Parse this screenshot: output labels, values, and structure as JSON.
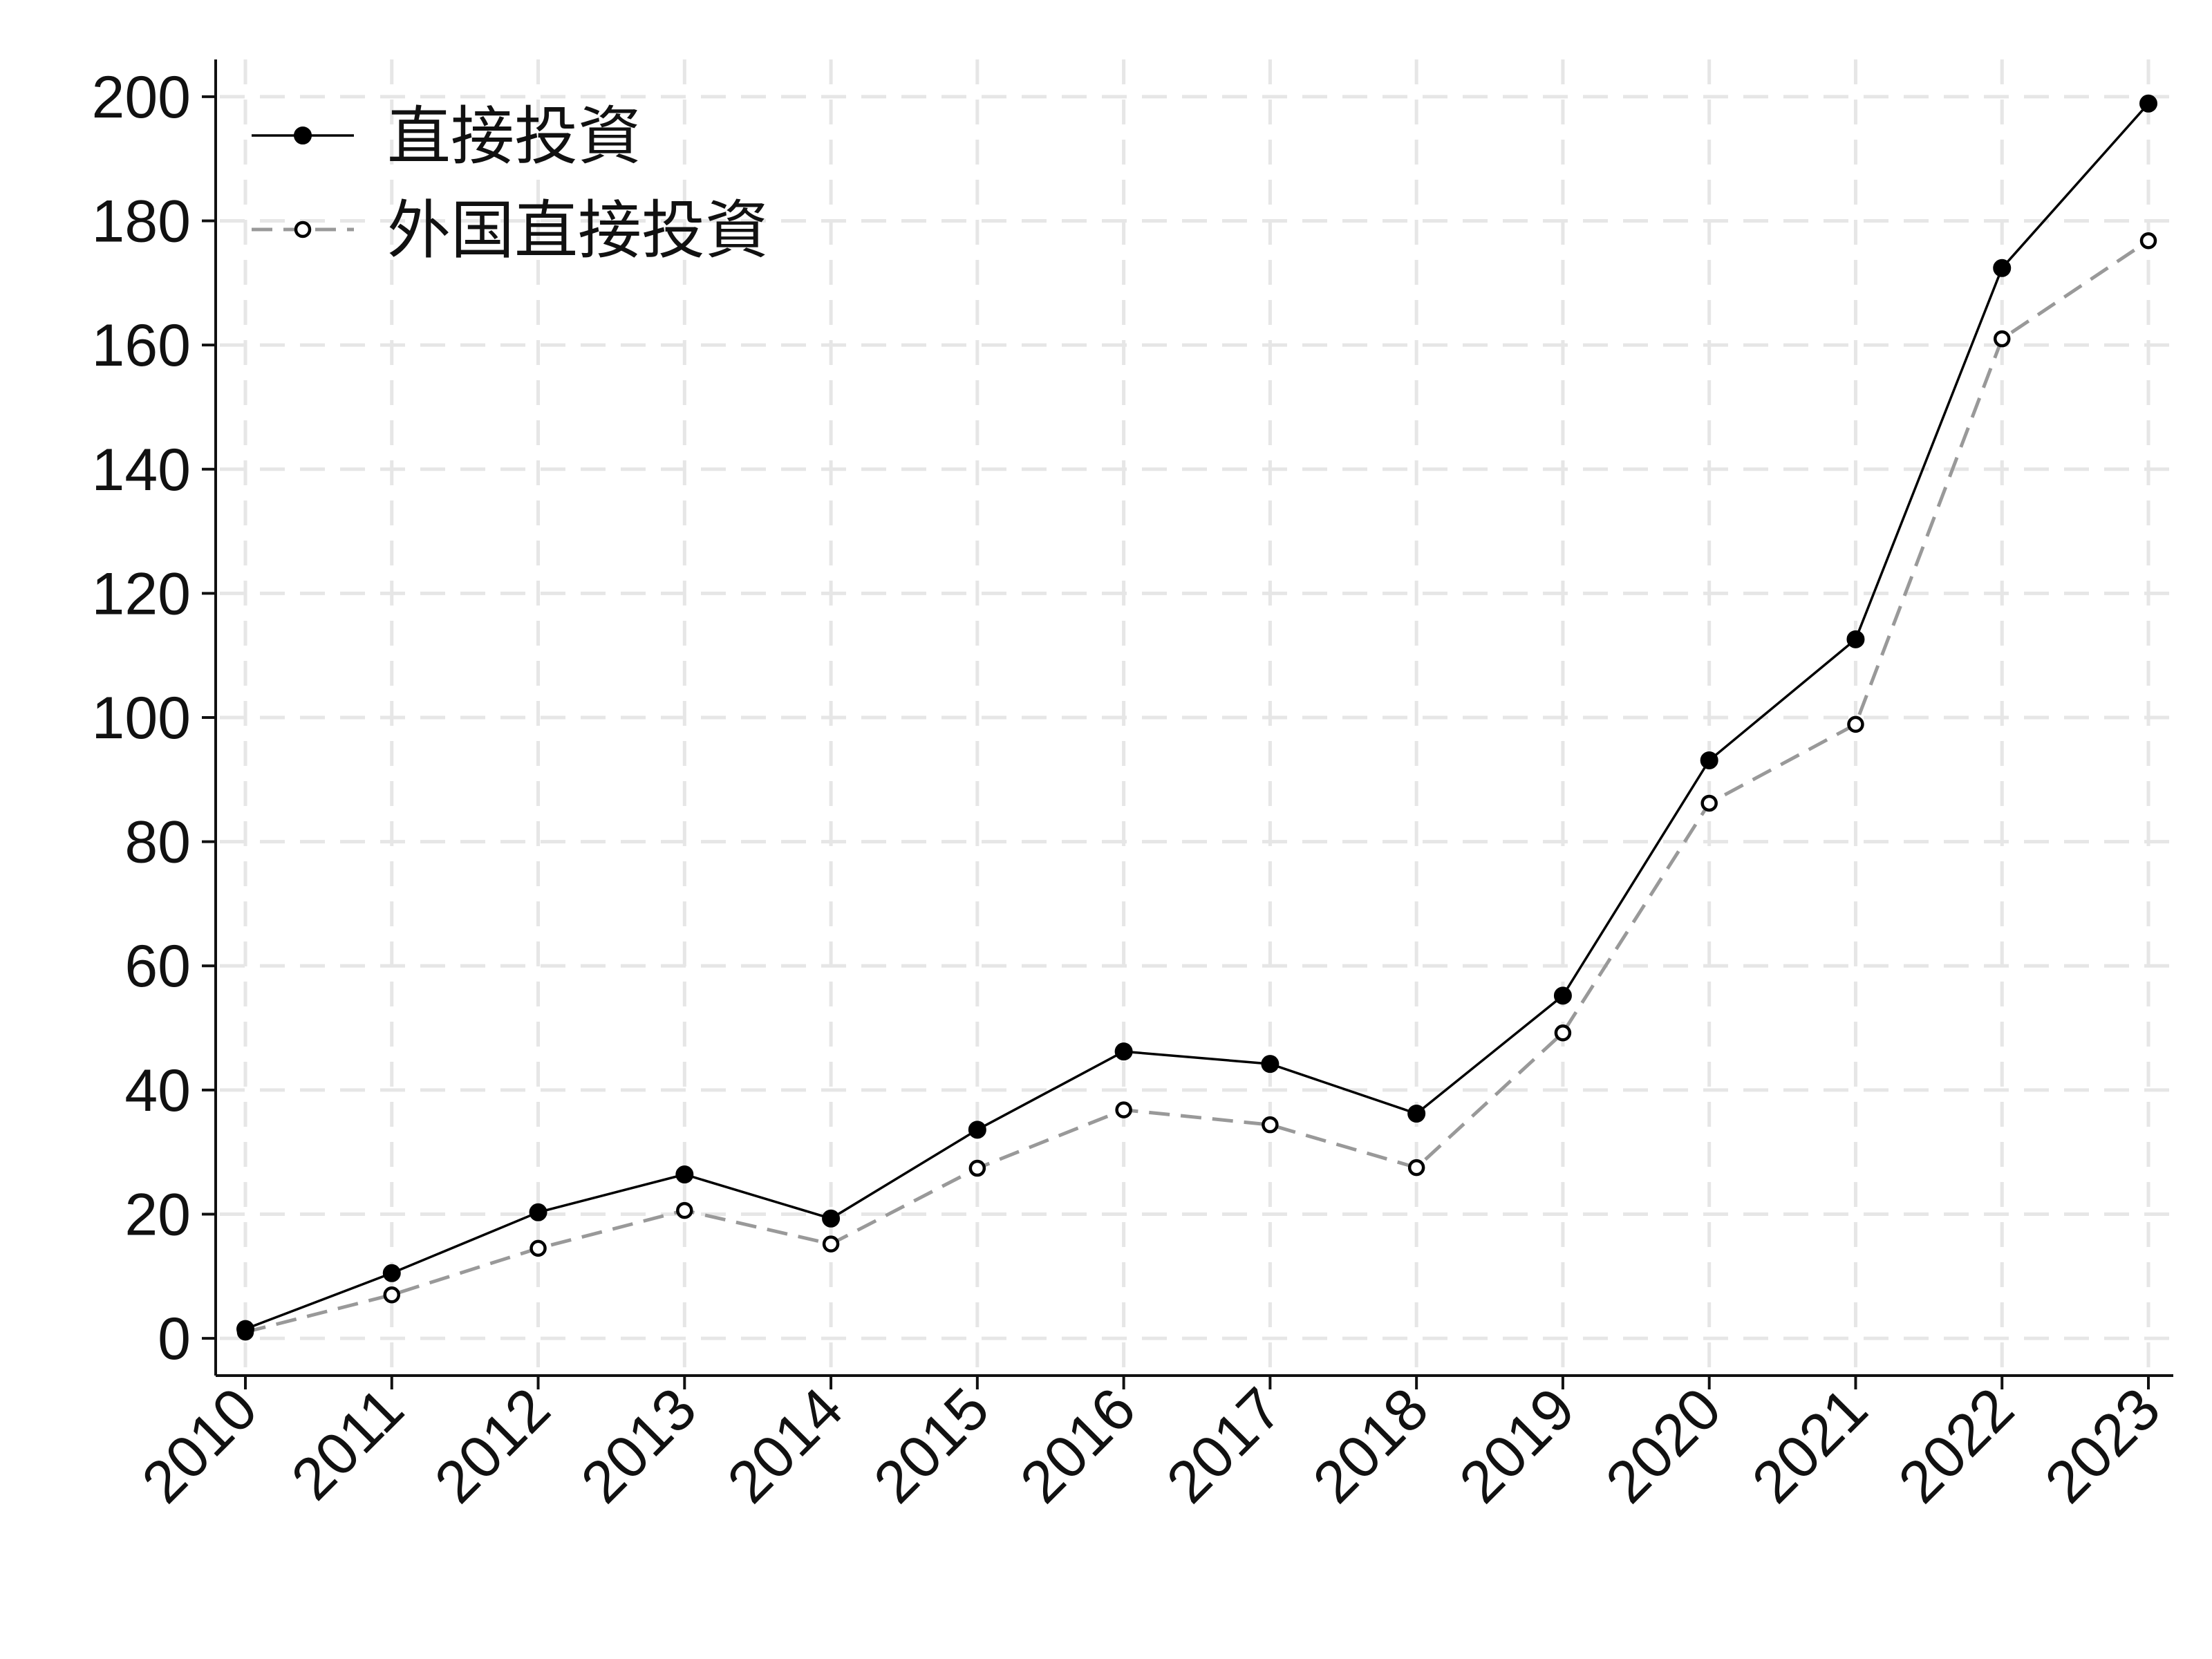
{
  "chart_data": {
    "type": "line",
    "title": "",
    "xlabel": "",
    "ylabel": "",
    "x": [
      "2010",
      "2011",
      "2012",
      "2013",
      "2014",
      "2015",
      "2016",
      "2017",
      "2018",
      "2019",
      "2020",
      "2021",
      "2022",
      "2023"
    ],
    "ylim": [
      -6,
      206
    ],
    "yticks": [
      0,
      20,
      40,
      60,
      80,
      100,
      120,
      140,
      160,
      180,
      200
    ],
    "grid": true,
    "legend_position": "top-left",
    "series": [
      {
        "name": "直接投資",
        "values": [
          1.5,
          10.5,
          20.3,
          26.4,
          19.3,
          33.6,
          46.2,
          44.2,
          36.2,
          55.2,
          93.1,
          112.6,
          172.4,
          198.9
        ],
        "color": "#000000",
        "line_style": "solid",
        "marker": "filled-circle"
      },
      {
        "name": "外国直接投資",
        "values": [
          1.0,
          7.0,
          14.5,
          20.6,
          15.2,
          27.4,
          36.8,
          34.4,
          27.5,
          49.2,
          86.2,
          98.9,
          161.0,
          176.8
        ],
        "color": "#999999",
        "line_style": "dashed",
        "marker": "hollow-circle"
      }
    ]
  }
}
